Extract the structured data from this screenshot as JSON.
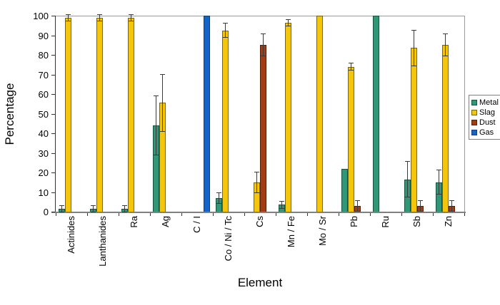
{
  "chart": {
    "background": "#ffffff",
    "plot_border_color": "#9a9a9a",
    "axis_color": "#808080",
    "error_bar_color": "#3a3a3a"
  },
  "chart_data": {
    "type": "bar",
    "title": "",
    "xlabel": "Element",
    "ylabel": "Percentage",
    "ylim": [
      0,
      100
    ],
    "ytick_step": 10,
    "yticks": [
      0,
      10,
      20,
      30,
      40,
      50,
      60,
      70,
      80,
      90,
      100
    ],
    "grid": false,
    "legend_position": "right",
    "categories": [
      "Actinides",
      "Lanthanides",
      "Ra",
      "Ag",
      "C / I",
      "Co / Ni / Tc",
      "Cs",
      "Mn / Fe",
      "Mo / Sr",
      "Pb",
      "Ru",
      "Sb",
      "Zn"
    ],
    "series": [
      {
        "name": "Metal",
        "color": "#2F9678",
        "border": "#14543F",
        "values": [
          1.5,
          1.5,
          1.5,
          44,
          null,
          7,
          null,
          3.5,
          null,
          22,
          100,
          16.5,
          15
        ],
        "errors": [
          1.5,
          1.5,
          1.5,
          15,
          null,
          2.5,
          null,
          1.5,
          null,
          null,
          null,
          9,
          6
        ]
      },
      {
        "name": "Slag",
        "color": "#F3C50C",
        "border": "#7A6500",
        "values": [
          99,
          99,
          99,
          55.5,
          null,
          92.5,
          15,
          96.5,
          100,
          74,
          null,
          83.5,
          85
        ],
        "errors": [
          1.5,
          1.5,
          1.5,
          14.5,
          null,
          3.5,
          5,
          1.5,
          null,
          1.5,
          null,
          9,
          5.5
        ]
      },
      {
        "name": "Dust",
        "color": "#A33D11",
        "border": "#571F06",
        "values": [
          null,
          null,
          null,
          null,
          null,
          null,
          85,
          null,
          null,
          3,
          null,
          3,
          3
        ],
        "errors": [
          null,
          null,
          null,
          null,
          null,
          null,
          5.5,
          null,
          null,
          2.5,
          null,
          2.5,
          2.5
        ]
      },
      {
        "name": "Gas",
        "color": "#1565C8",
        "border": "#0A3C7E",
        "values": [
          null,
          null,
          null,
          null,
          100,
          null,
          null,
          null,
          null,
          null,
          null,
          null,
          null
        ],
        "errors": [
          null,
          null,
          null,
          null,
          null,
          null,
          null,
          null,
          null,
          null,
          null,
          null,
          null
        ]
      }
    ]
  }
}
